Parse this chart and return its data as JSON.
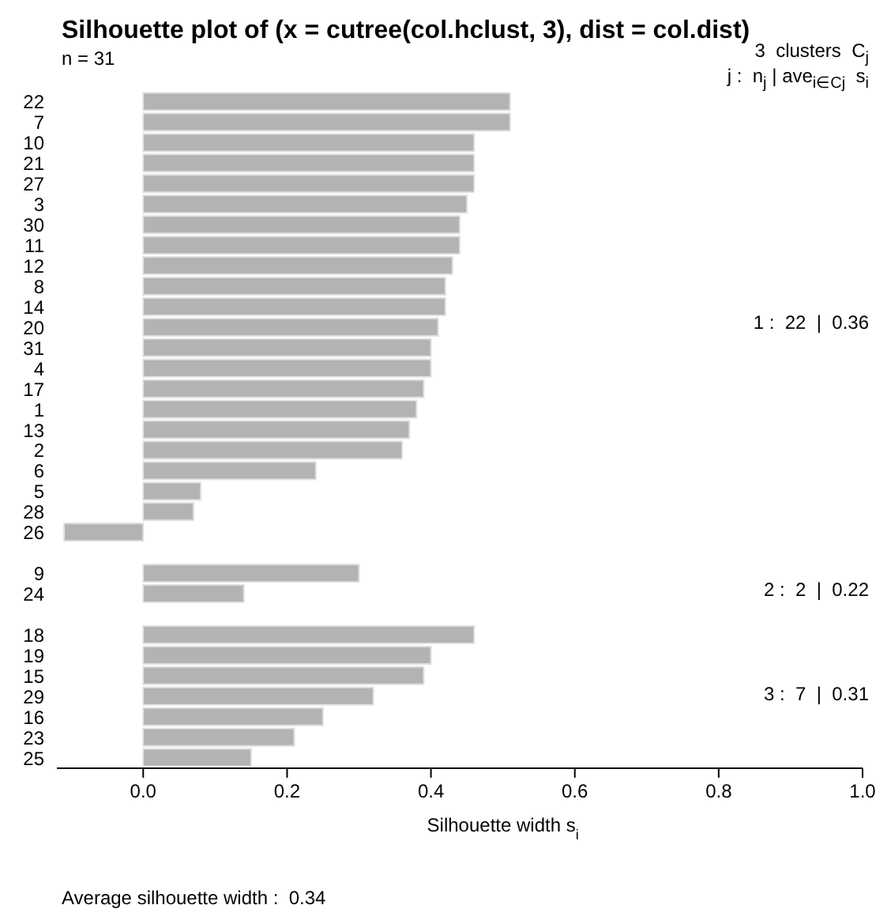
{
  "chart_data": {
    "type": "bar",
    "orientation": "horizontal",
    "title": "Silhouette plot of (x = cutree(col.hclust, 3), dist = col.dist)",
    "subtitle": "n = 31",
    "xlabel": "Silhouette width s$_{i}$",
    "categories": [
      "22",
      "7",
      "10",
      "21",
      "27",
      "3",
      "30",
      "11",
      "12",
      "8",
      "14",
      "20",
      "31",
      "4",
      "17",
      "1",
      "13",
      "2",
      "6",
      "5",
      "28",
      "26",
      null,
      "9",
      "24",
      null,
      "18",
      "19",
      "15",
      "29",
      "16",
      "23",
      "25"
    ],
    "values": [
      0.51,
      0.51,
      0.46,
      0.46,
      0.46,
      0.45,
      0.44,
      0.44,
      0.43,
      0.42,
      0.42,
      0.41,
      0.4,
      0.4,
      0.39,
      0.38,
      0.37,
      0.36,
      0.24,
      0.08,
      0.07,
      -0.11,
      null,
      0.3,
      0.14,
      null,
      0.46,
      0.4,
      0.39,
      0.32,
      0.25,
      0.21,
      0.15
    ],
    "color": "#b3b3b3",
    "xlim": [
      -0.12,
      1
    ],
    "xticks": [
      {
        "value": 0,
        "label": "0.0"
      },
      0.2,
      0.4,
      0.6,
      0.8,
      {
        "value": 1,
        "label": "1.0"
      }
    ],
    "grid": false,
    "annotations": [
      "3  clusters  C$_{j}$",
      "j :  n$_{j}$ | ave$_{i∈Cj}$  s$_{i}$",
      "1 :  22  |  0.36",
      "2 :  2  |  0.22",
      "3 :  7  |  0.31",
      "Average silhouette width :  0.34"
    ]
  }
}
